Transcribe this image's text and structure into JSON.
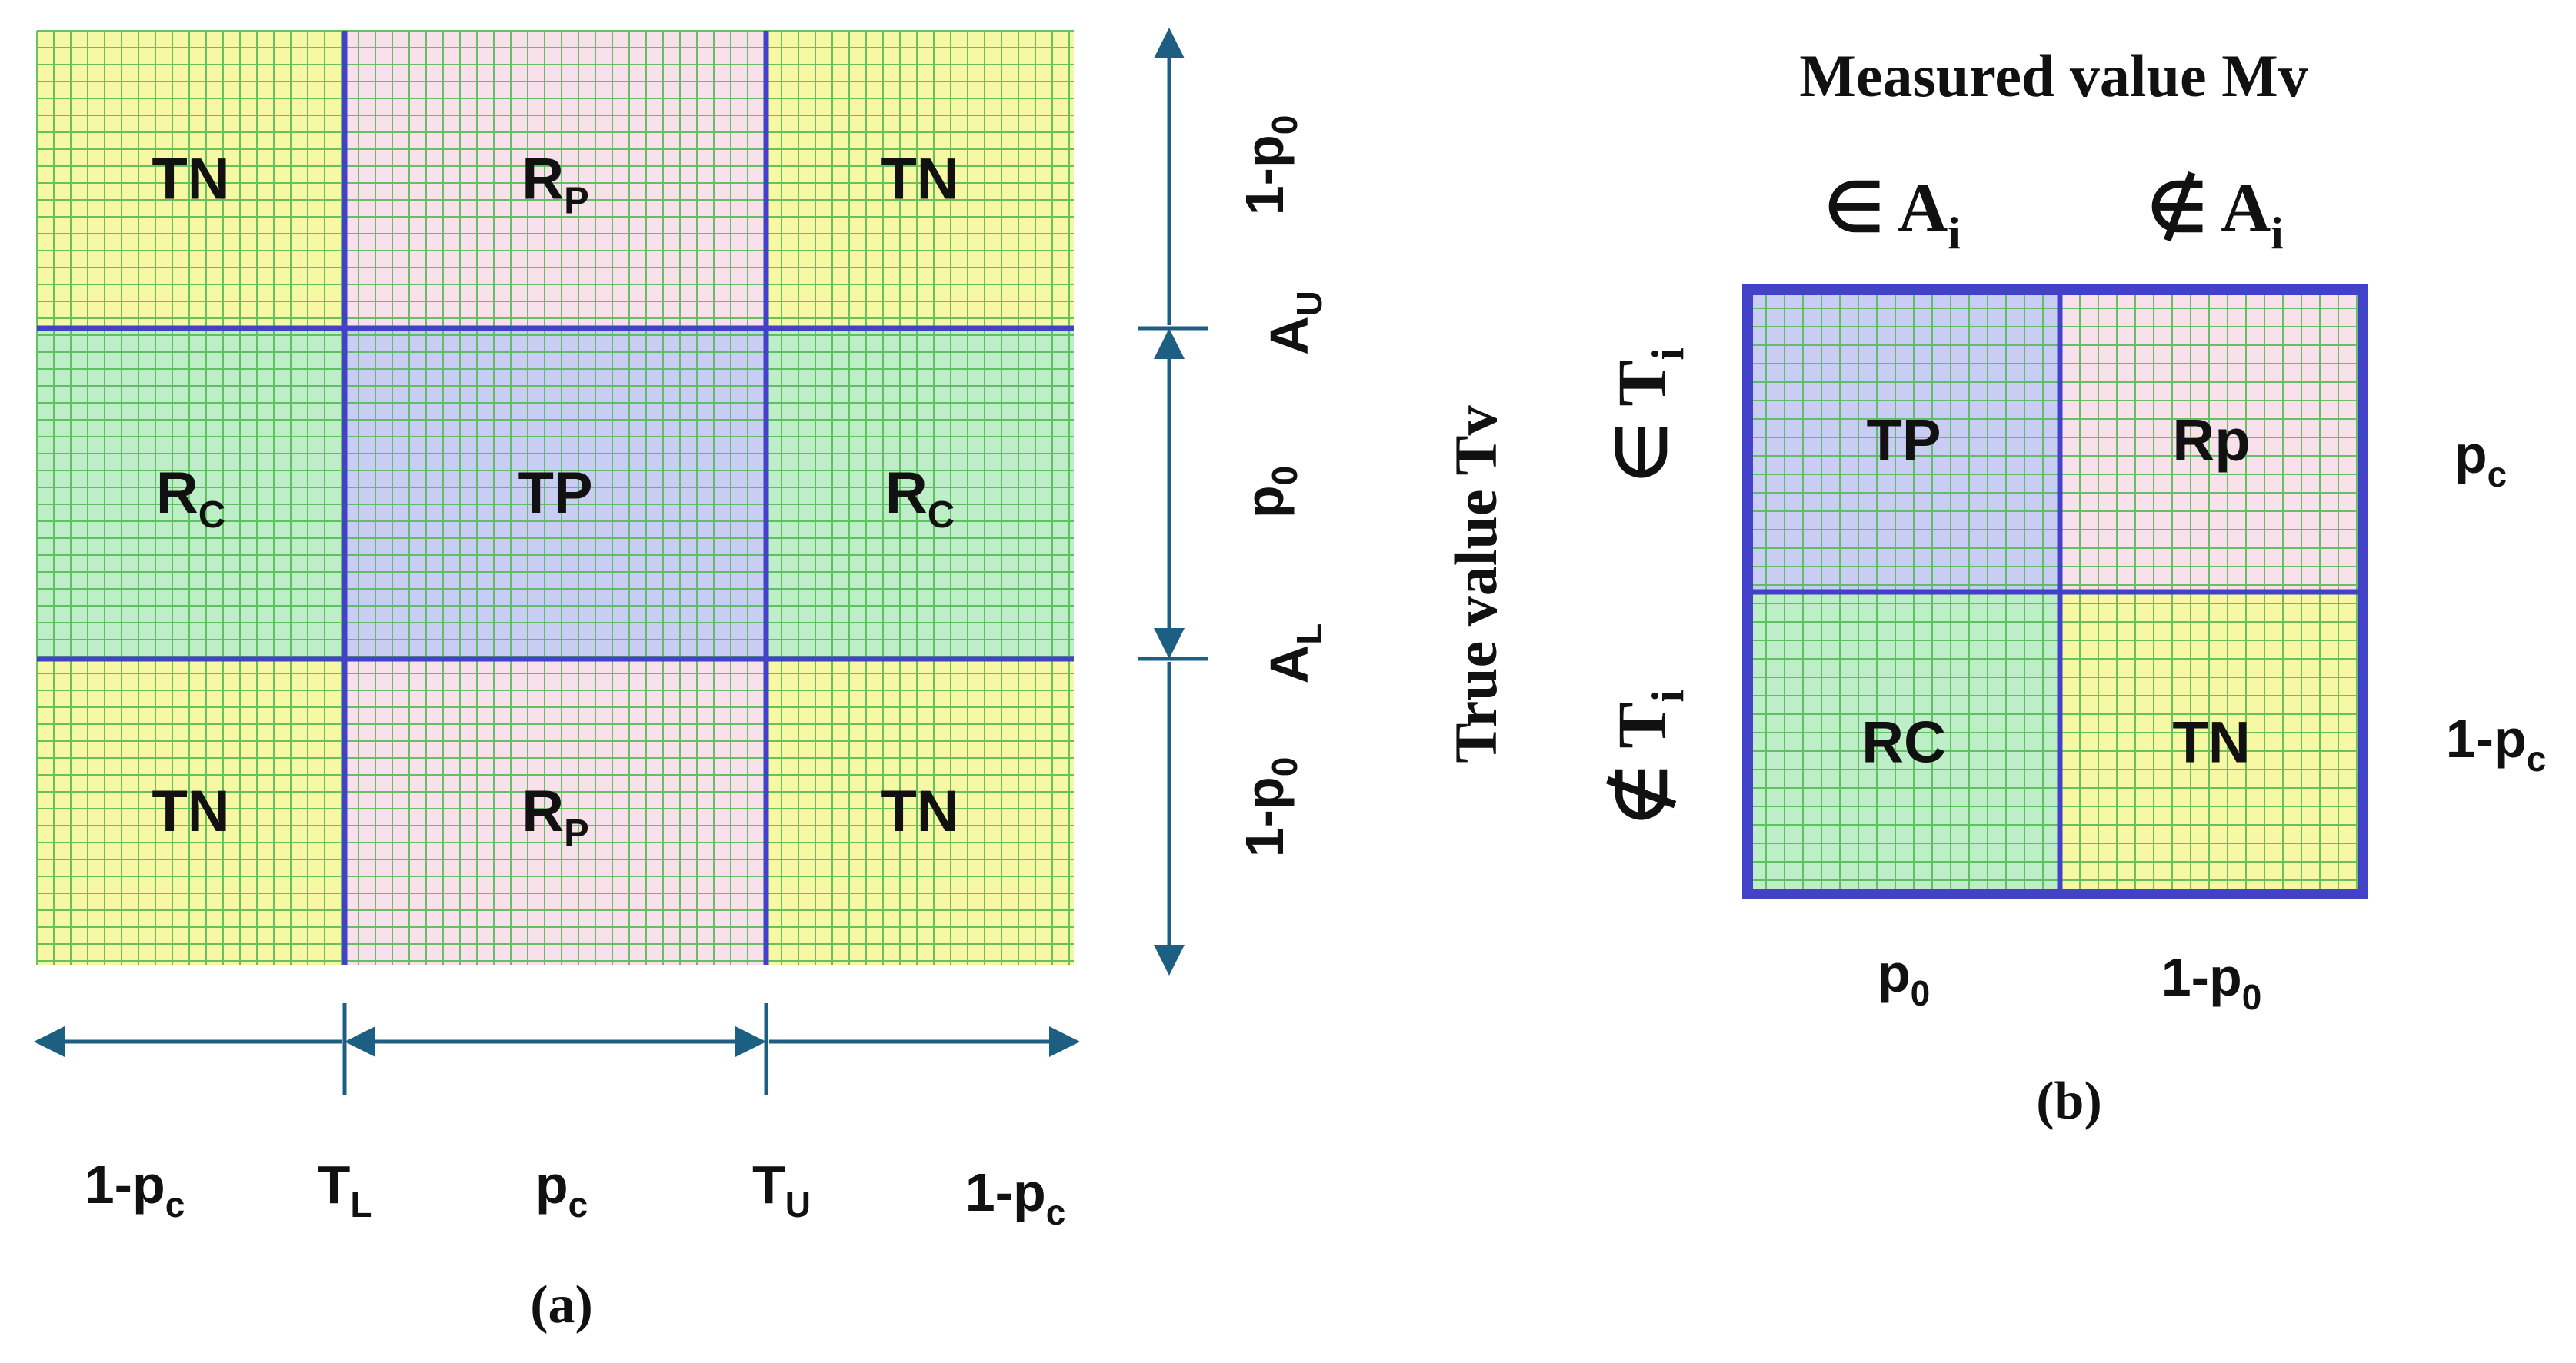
{
  "colors": {
    "yellow": "#f6f8a4",
    "green": "#bdeec7",
    "pink": "#f8e1ea",
    "blue": "#c9cdf4",
    "grid_line": "#4fb74f",
    "grid_line_pink": "#9a98e0",
    "divider": "#4242c8",
    "arrow": "#1d5f82"
  },
  "panel_a": {
    "caption": "(a)",
    "cells": [
      [
        "TN",
        "R_P",
        "TN"
      ],
      [
        "R_C",
        "TP",
        "R_C"
      ],
      [
        "TN",
        "R_P",
        "TN"
      ]
    ],
    "fills": [
      [
        "yellow",
        "pink",
        "yellow"
      ],
      [
        "green",
        "blue",
        "green"
      ],
      [
        "yellow",
        "pink",
        "yellow"
      ]
    ],
    "bottom_segment_labels": [
      "1-p_c",
      "p_c",
      "1-p_c"
    ],
    "bottom_tick_labels": [
      "T_L",
      "T_U"
    ],
    "right_segment_labels": [
      "1-p_0",
      "p_0",
      "1-p_0"
    ],
    "right_tick_labels": [
      "A_U",
      "A_L"
    ]
  },
  "panel_b": {
    "caption": "(b)",
    "title": "Measured value Mv",
    "y_title": "True value Tv",
    "col_headers": [
      "∈ A_i",
      "∉ A_i"
    ],
    "row_headers": [
      "∈ T_i",
      "∉ T_i"
    ],
    "cells": [
      [
        "TP",
        "Rp"
      ],
      [
        "RC",
        "TN"
      ]
    ],
    "fills": [
      [
        "blue",
        "pink"
      ],
      [
        "green",
        "yellow"
      ]
    ],
    "row_labels": [
      "p_c",
      "1-p_c"
    ],
    "col_labels": [
      "p_0",
      "1-p_0"
    ]
  }
}
